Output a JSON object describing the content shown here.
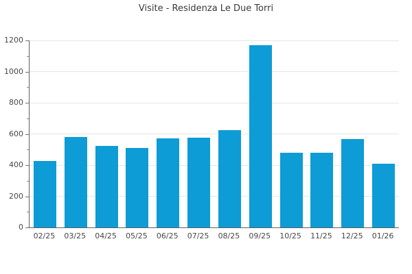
{
  "chart_data": {
    "type": "bar",
    "title": "Visite - Residenza Le Due Torri",
    "categories": [
      "02/25",
      "03/25",
      "04/25",
      "05/25",
      "06/25",
      "07/25",
      "08/25",
      "09/25",
      "10/25",
      "11/25",
      "12/25",
      "01/26"
    ],
    "values": [
      425,
      580,
      525,
      510,
      570,
      575,
      625,
      1170,
      480,
      480,
      565,
      410
    ],
    "xlabel": "",
    "ylabel": "",
    "ylim": [
      0,
      1200
    ],
    "yticks": [
      0,
      200,
      400,
      600,
      800,
      1000,
      1200
    ],
    "minor_yticks": [
      100,
      300,
      500,
      700,
      900,
      1100
    ],
    "ytick_labels": [
      "0",
      "200",
      "400",
      "600",
      "800",
      "1000",
      "1200"
    ],
    "grid": true,
    "legend": false
  },
  "colors": {
    "background": "#ffffff",
    "bar": "#0d9cd6",
    "gridline": "#e5e5e5",
    "axis_spine": "#5f5f5f",
    "major_tick": "#6f6f6f",
    "minor_tick": "#8a8a8a",
    "tick_label": "#474747",
    "title": "#3a3a3a"
  }
}
